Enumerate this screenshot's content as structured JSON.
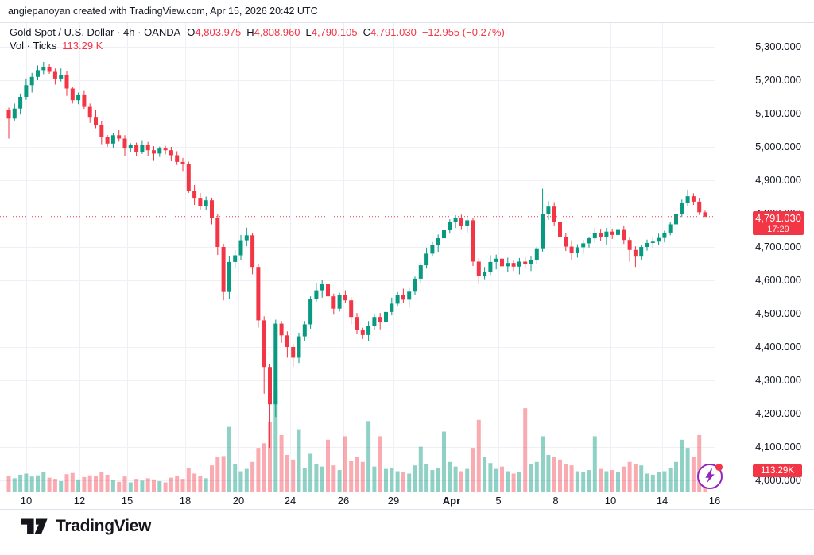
{
  "attribution": "angiepanoyan created with TradingView.com, Apr 15, 2026 20:42 UTC",
  "legend": {
    "title": "Gold Spot / U.S. Dollar · 4h · OANDA",
    "ohlc": [
      {
        "l": "O",
        "v": "4,803.975"
      },
      {
        "l": "H",
        "v": "4,808.960"
      },
      {
        "l": "L",
        "v": "4,790.105"
      },
      {
        "l": "C",
        "v": "4,791.030"
      }
    ],
    "change": "−12.955 (−0.27%)",
    "vol_label": "Vol · Ticks",
    "vol_value": "113.29 K"
  },
  "price_label": {
    "price": "4,791.030",
    "countdown": "17:29"
  },
  "vol_axis_label": "113.29K",
  "logo": {
    "text": "TradingView"
  },
  "icons": {
    "flash": "lightning-icon"
  },
  "colors": {
    "up": "#089981",
    "down": "#f23645",
    "vol_up": "rgba(8,153,129,0.45)",
    "vol_down": "rgba(242,54,69,0.42)",
    "grid": "#eef0f6",
    "border": "#e0e3eb",
    "text": "#131722",
    "last_price_line": "#f23645",
    "label_bg": "#f23645",
    "flash": "#9126bf"
  },
  "chart_data": {
    "type": "candlestick",
    "title": "Gold Spot / U.S. Dollar · 4h · OANDA",
    "symbol": "Gold Spot / U.S. Dollar",
    "interval": "4h",
    "exchange": "OANDA",
    "ylim": [
      4000,
      5300
    ],
    "last_price": 4791.03,
    "grid": true,
    "legend_position": "top-left",
    "y_ticks": [
      [
        "4,000.000",
        4000
      ],
      [
        "4,100.000",
        4100
      ],
      [
        "4,200.000",
        4200
      ],
      [
        "4,300.000",
        4300
      ],
      [
        "4,400.000",
        4400
      ],
      [
        "4,500.000",
        4500
      ],
      [
        "4,600.000",
        4600
      ],
      [
        "4,700.000",
        4700
      ],
      [
        "4,800.000",
        4800
      ],
      [
        "4,900.000",
        4900
      ],
      [
        "5,000.000",
        5000
      ],
      [
        "5,100.000",
        5100
      ],
      [
        "5,200.000",
        5200
      ],
      [
        "5,300.000",
        5300
      ]
    ],
    "x_ticks": [
      [
        33,
        "10",
        false
      ],
      [
        100,
        "12",
        false
      ],
      [
        160,
        "15",
        false
      ],
      [
        233,
        "18",
        false
      ],
      [
        300,
        "20",
        false
      ],
      [
        365,
        "24",
        false
      ],
      [
        432,
        "26",
        false
      ],
      [
        495,
        "29",
        false
      ],
      [
        568,
        "Apr",
        true
      ],
      [
        627,
        "5",
        false
      ],
      [
        699,
        "8",
        false
      ],
      [
        768,
        "10",
        false
      ],
      [
        833,
        "14",
        false
      ],
      [
        899,
        "16",
        false
      ]
    ],
    "volume_unit": "K ticks",
    "candles": [
      [
        5110,
        5118,
        5025,
        5085,
        140
      ],
      [
        5085,
        5130,
        5079,
        5115,
        120
      ],
      [
        5115,
        5160,
        5097,
        5150,
        150
      ],
      [
        5150,
        5205,
        5141,
        5185,
        160
      ],
      [
        5185,
        5222,
        5163,
        5210,
        135
      ],
      [
        5210,
        5244,
        5200,
        5230,
        145
      ],
      [
        5230,
        5255,
        5218,
        5240,
        170
      ],
      [
        5240,
        5248,
        5219,
        5225,
        125
      ],
      [
        5225,
        5235,
        5187,
        5205,
        115
      ],
      [
        5205,
        5235,
        5196,
        5215,
        95
      ],
      [
        5215,
        5227,
        5153,
        5175,
        155
      ],
      [
        5175,
        5181,
        5130,
        5140,
        165
      ],
      [
        5140,
        5163,
        5128,
        5155,
        110
      ],
      [
        5155,
        5170,
        5114,
        5120,
        130
      ],
      [
        5120,
        5130,
        5072,
        5090,
        145
      ],
      [
        5090,
        5110,
        5056,
        5065,
        140
      ],
      [
        5065,
        5077,
        5008,
        5030,
        175
      ],
      [
        5030,
        5036,
        5000,
        5010,
        150
      ],
      [
        5010,
        5043,
        4998,
        5035,
        105
      ],
      [
        5035,
        5050,
        5016,
        5025,
        90
      ],
      [
        5025,
        5035,
        4973,
        4995,
        135
      ],
      [
        4995,
        5011,
        4985,
        5005,
        85
      ],
      [
        5005,
        5013,
        4973,
        4985,
        115
      ],
      [
        4985,
        5020,
        4979,
        5005,
        100
      ],
      [
        5005,
        5015,
        4972,
        4990,
        120
      ],
      [
        4990,
        5002,
        4958,
        4980,
        110
      ],
      [
        4980,
        5001,
        4970,
        4995,
        95
      ],
      [
        4995,
        5003,
        4978,
        4990,
        85
      ],
      [
        4990,
        5000,
        4957,
        4975,
        125
      ],
      [
        4975,
        4987,
        4946,
        4955,
        140
      ],
      [
        4955,
        4967,
        4928,
        4950,
        115
      ],
      [
        4950,
        4956,
        4862,
        4868,
        210
      ],
      [
        4868,
        4886,
        4826,
        4845,
        160
      ],
      [
        4845,
        4862,
        4812,
        4822,
        140
      ],
      [
        4822,
        4851,
        4810,
        4840,
        120
      ],
      [
        4840,
        4848,
        4768,
        4788,
        230
      ],
      [
        4788,
        4798,
        4676,
        4700,
        300
      ],
      [
        4700,
        4710,
        4540,
        4565,
        310
      ],
      [
        4565,
        4672,
        4545,
        4655,
        560
      ],
      [
        4655,
        4690,
        4638,
        4675,
        240
      ],
      [
        4675,
        4736,
        4660,
        4720,
        180
      ],
      [
        4720,
        4758,
        4702,
        4735,
        200
      ],
      [
        4735,
        4742,
        4618,
        4640,
        260
      ],
      [
        4640,
        4648,
        4458,
        4480,
        380
      ],
      [
        4480,
        4492,
        4260,
        4340,
        420
      ],
      [
        4340,
        4348,
        4098,
        4228,
        600
      ],
      [
        4228,
        4482,
        4190,
        4470,
        880
      ],
      [
        4470,
        4478,
        4412,
        4435,
        490
      ],
      [
        4435,
        4447,
        4368,
        4400,
        320
      ],
      [
        4400,
        4410,
        4341,
        4368,
        280
      ],
      [
        4368,
        4443,
        4352,
        4432,
        540
      ],
      [
        4432,
        4478,
        4418,
        4468,
        210
      ],
      [
        4468,
        4552,
        4455,
        4545,
        330
      ],
      [
        4545,
        4590,
        4536,
        4570,
        240
      ],
      [
        4570,
        4600,
        4548,
        4588,
        220
      ],
      [
        4588,
        4594,
        4538,
        4552,
        450
      ],
      [
        4552,
        4560,
        4497,
        4515,
        230
      ],
      [
        4515,
        4563,
        4506,
        4555,
        190
      ],
      [
        4555,
        4570,
        4531,
        4540,
        480
      ],
      [
        4540,
        4550,
        4468,
        4490,
        270
      ],
      [
        4490,
        4502,
        4438,
        4452,
        300
      ],
      [
        4452,
        4458,
        4424,
        4436,
        260
      ],
      [
        4436,
        4478,
        4417,
        4462,
        610
      ],
      [
        4462,
        4499,
        4451,
        4490,
        220
      ],
      [
        4490,
        4502,
        4453,
        4476,
        480
      ],
      [
        4476,
        4511,
        4465,
        4505,
        200
      ],
      [
        4505,
        4548,
        4495,
        4530,
        210
      ],
      [
        4530,
        4565,
        4521,
        4556,
        180
      ],
      [
        4556,
        4575,
        4531,
        4542,
        170
      ],
      [
        4542,
        4577,
        4518,
        4566,
        160
      ],
      [
        4566,
        4611,
        4555,
        4605,
        230
      ],
      [
        4605,
        4653,
        4593,
        4645,
        390
      ],
      [
        4645,
        4698,
        4635,
        4680,
        240
      ],
      [
        4680,
        4715,
        4671,
        4706,
        190
      ],
      [
        4706,
        4737,
        4683,
        4726,
        210
      ],
      [
        4726,
        4756,
        4715,
        4750,
        520
      ],
      [
        4750,
        4783,
        4740,
        4775,
        260
      ],
      [
        4775,
        4795,
        4757,
        4786,
        220
      ],
      [
        4786,
        4797,
        4751,
        4762,
        180
      ],
      [
        4762,
        4788,
        4742,
        4780,
        200
      ],
      [
        4780,
        4786,
        4643,
        4656,
        380
      ],
      [
        4656,
        4667,
        4588,
        4612,
        620
      ],
      [
        4612,
        4640,
        4601,
        4626,
        300
      ],
      [
        4626,
        4675,
        4616,
        4655,
        250
      ],
      [
        4655,
        4677,
        4633,
        4665,
        200
      ],
      [
        4665,
        4671,
        4628,
        4642,
        220
      ],
      [
        4642,
        4668,
        4625,
        4652,
        180
      ],
      [
        4652,
        4662,
        4628,
        4641,
        160
      ],
      [
        4641,
        4667,
        4618,
        4656,
        170
      ],
      [
        4656,
        4670,
        4638,
        4649,
        720
      ],
      [
        4649,
        4672,
        4628,
        4661,
        240
      ],
      [
        4661,
        4701,
        4650,
        4696,
        260
      ],
      [
        4696,
        4875,
        4686,
        4800,
        480
      ],
      [
        4800,
        4838,
        4781,
        4821,
        320
      ],
      [
        4821,
        4832,
        4762,
        4776,
        300
      ],
      [
        4776,
        4781,
        4706,
        4731,
        280
      ],
      [
        4731,
        4742,
        4688,
        4701,
        240
      ],
      [
        4701,
        4720,
        4660,
        4681,
        230
      ],
      [
        4681,
        4708,
        4668,
        4699,
        180
      ],
      [
        4699,
        4722,
        4680,
        4711,
        170
      ],
      [
        4711,
        4731,
        4698,
        4726,
        190
      ],
      [
        4726,
        4758,
        4714,
        4741,
        480
      ],
      [
        4741,
        4752,
        4719,
        4731,
        200
      ],
      [
        4731,
        4757,
        4707,
        4746,
        180
      ],
      [
        4746,
        4755,
        4724,
        4736,
        190
      ],
      [
        4736,
        4756,
        4723,
        4751,
        170
      ],
      [
        4751,
        4762,
        4709,
        4721,
        220
      ],
      [
        4721,
        4730,
        4656,
        4691,
        260
      ],
      [
        4691,
        4702,
        4640,
        4671,
        240
      ],
      [
        4671,
        4707,
        4660,
        4700,
        230
      ],
      [
        4700,
        4722,
        4689,
        4712,
        160
      ],
      [
        4712,
        4727,
        4697,
        4716,
        150
      ],
      [
        4716,
        4740,
        4705,
        4727,
        170
      ],
      [
        4727,
        4749,
        4714,
        4743,
        180
      ],
      [
        4743,
        4775,
        4735,
        4768,
        210
      ],
      [
        4768,
        4807,
        4759,
        4800,
        260
      ],
      [
        4800,
        4842,
        4790,
        4831,
        450
      ],
      [
        4831,
        4872,
        4821,
        4852,
        380
      ],
      [
        4852,
        4861,
        4826,
        4836,
        300
      ],
      [
        4836,
        4846,
        4796,
        4804,
        490
      ],
      [
        4804,
        4809,
        4790,
        4791,
        113.29
      ]
    ]
  }
}
